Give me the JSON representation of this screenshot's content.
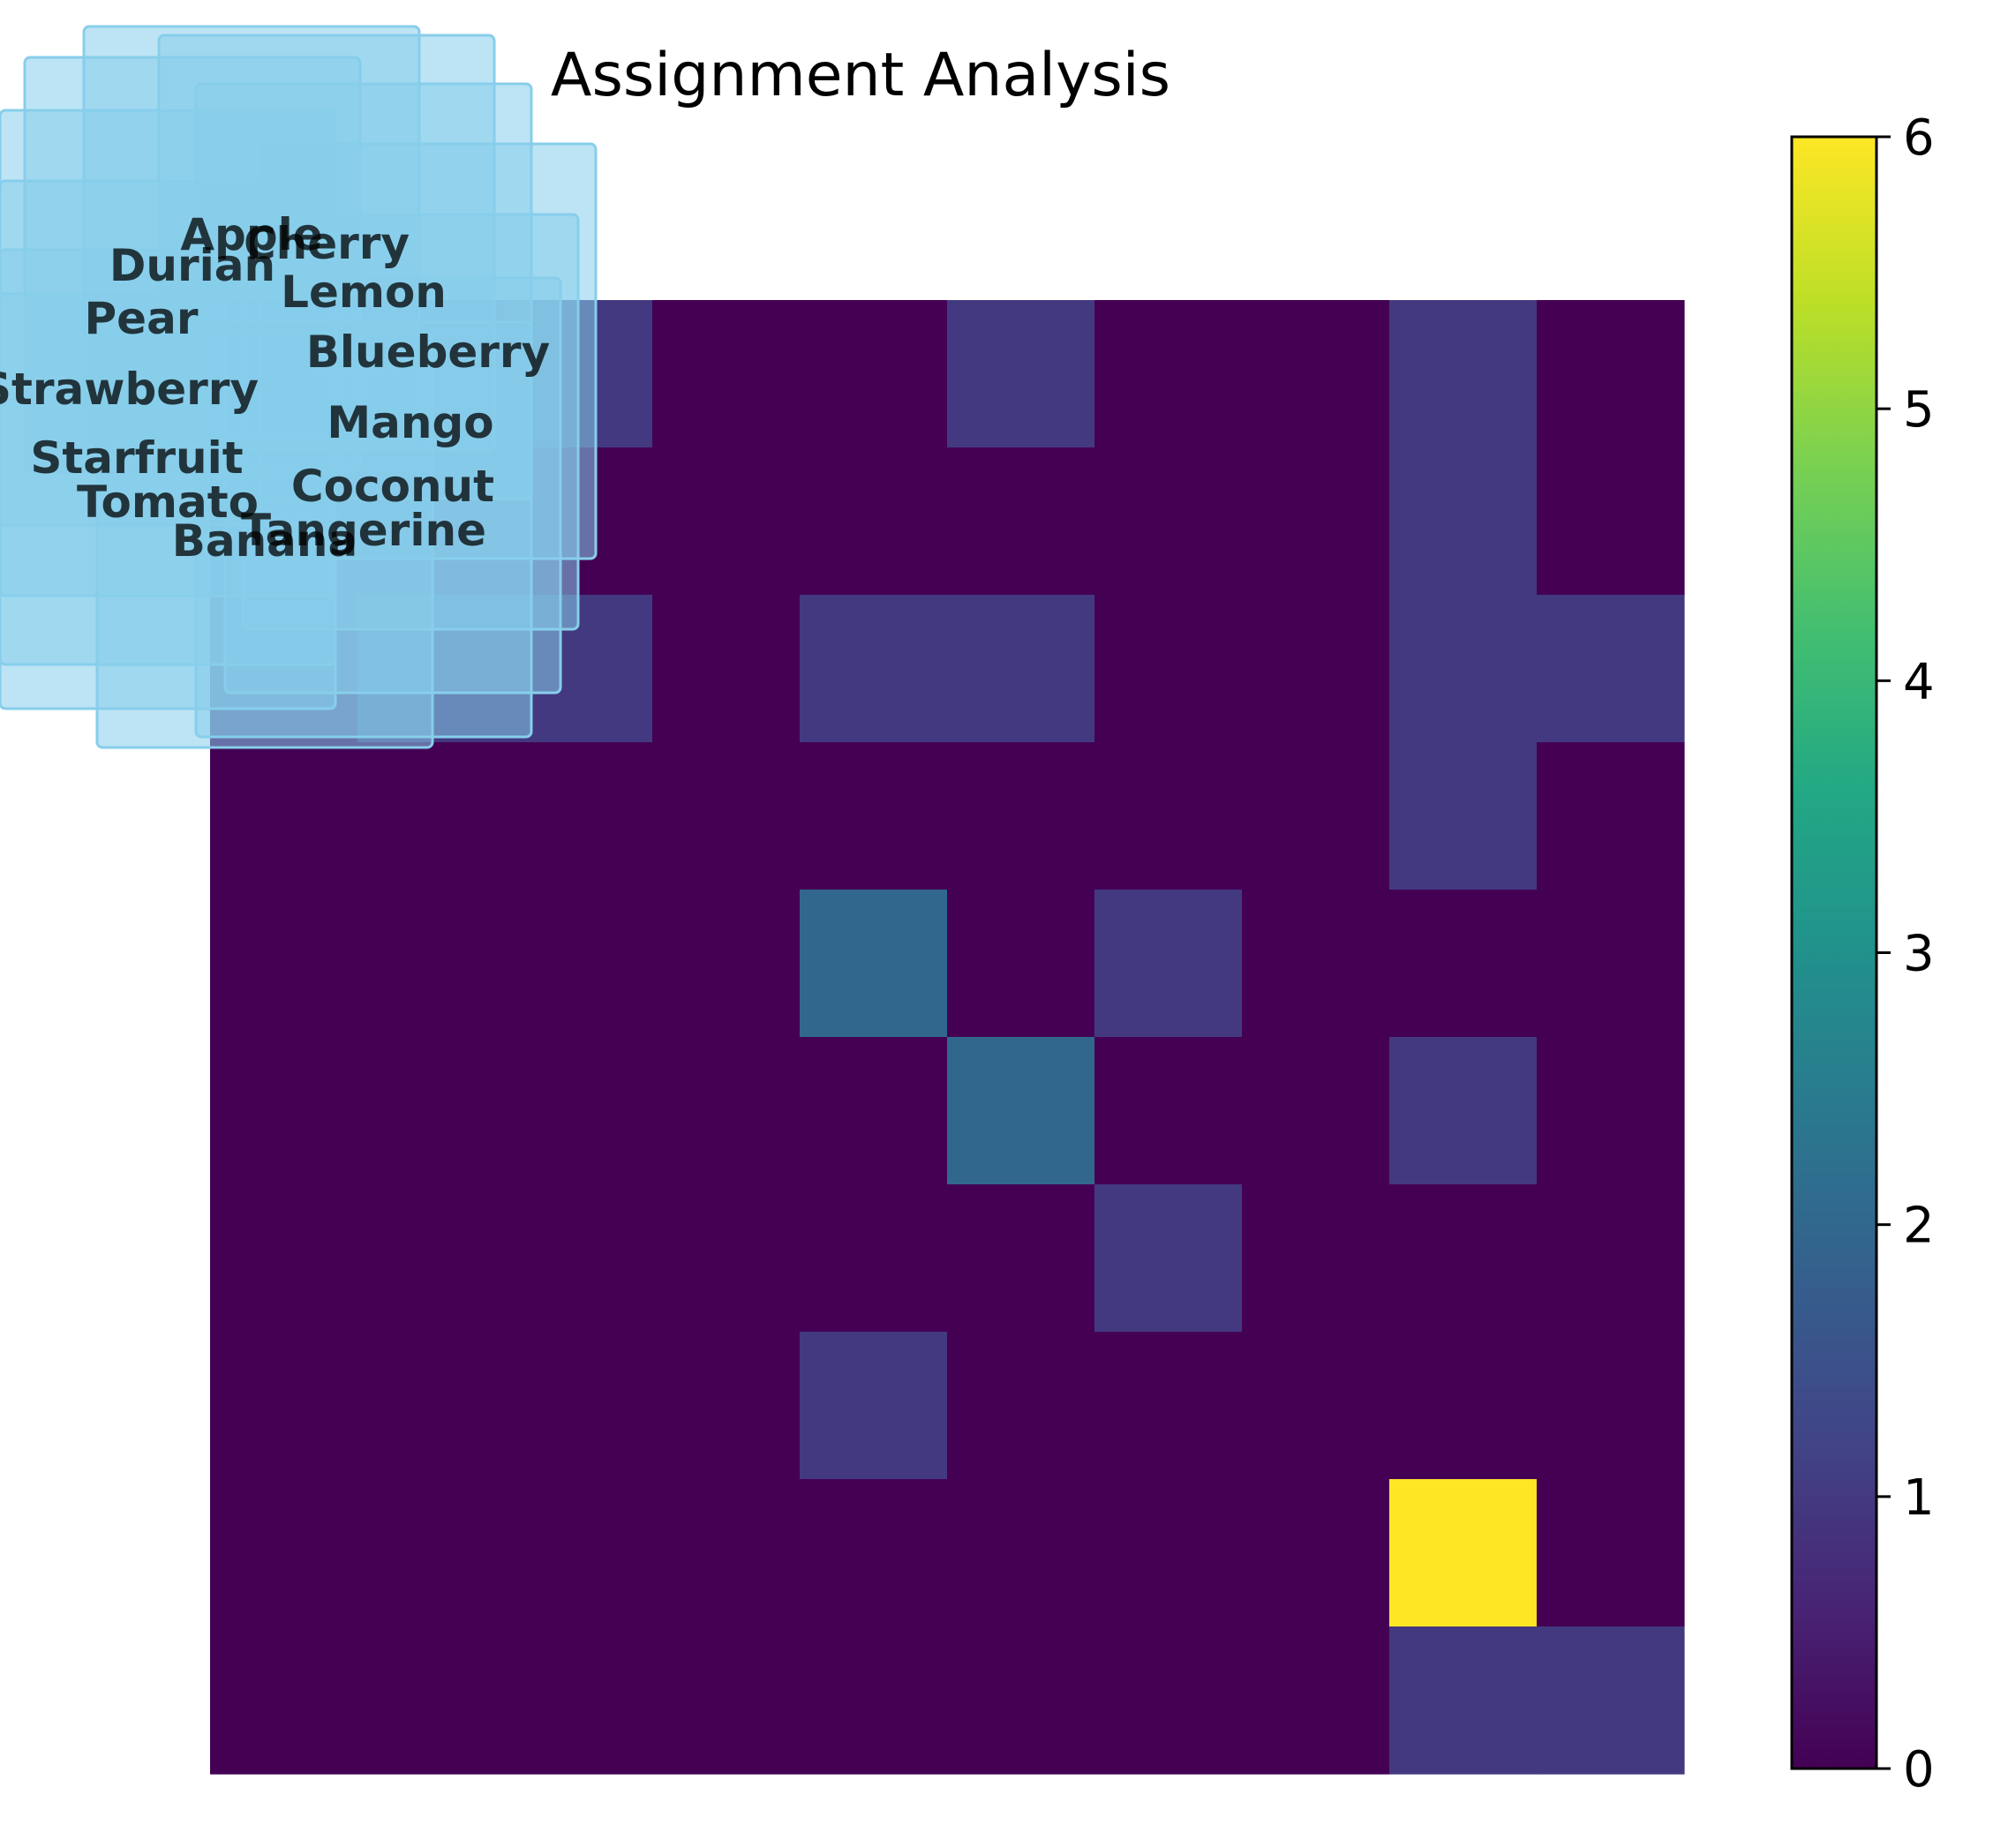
{
  "chart_data": {
    "type": "heatmap",
    "title": "Assignment Analysis",
    "xlabel": "",
    "ylabel": "",
    "rows": 10,
    "cols": 10,
    "values": [
      [
        0,
        0,
        1,
        0,
        0,
        1,
        0,
        0,
        1,
        0
      ],
      [
        0,
        0,
        0,
        0,
        0,
        0,
        0,
        0,
        1,
        0
      ],
      [
        0,
        1,
        1,
        0,
        1,
        1,
        0,
        0,
        1,
        1
      ],
      [
        0,
        0,
        0,
        0,
        0,
        0,
        0,
        0,
        1,
        0
      ],
      [
        0,
        0,
        0,
        0,
        2,
        0,
        1,
        0,
        0,
        0
      ],
      [
        0,
        0,
        0,
        0,
        0,
        2,
        0,
        0,
        1,
        0
      ],
      [
        0,
        0,
        0,
        0,
        0,
        0,
        1,
        0,
        0,
        0
      ],
      [
        0,
        0,
        0,
        0,
        1,
        0,
        0,
        0,
        0,
        0
      ],
      [
        0,
        0,
        0,
        0,
        0,
        0,
        0,
        0,
        6,
        0
      ],
      [
        0,
        0,
        0,
        0,
        0,
        0,
        0,
        0,
        1,
        1
      ]
    ],
    "colormap": "viridis",
    "colorbar": {
      "min": 0,
      "max": 6,
      "ticks": [
        "0",
        "1",
        "2",
        "3",
        "4",
        "5",
        "6"
      ]
    },
    "labels": [
      {
        "text": "Apple"
      },
      {
        "text": "Cherry"
      },
      {
        "text": "Durian"
      },
      {
        "text": "Lemon"
      },
      {
        "text": "Pear"
      },
      {
        "text": "Blueberry"
      },
      {
        "text": "Strawberry"
      },
      {
        "text": "Mango"
      },
      {
        "text": "Starfruit"
      },
      {
        "text": "Coconut"
      },
      {
        "text": "Tomato"
      },
      {
        "text": "Tangerine"
      },
      {
        "text": "Banana"
      }
    ],
    "label_box_color": "#87ceeb",
    "grid": false,
    "axes_visible": false
  }
}
